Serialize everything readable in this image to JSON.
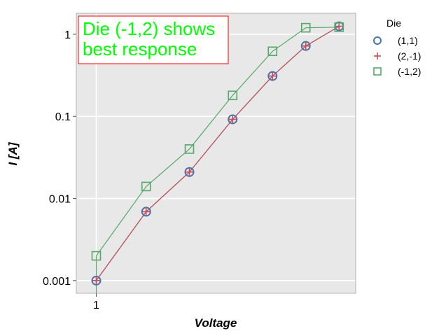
{
  "chart_data": {
    "type": "line",
    "title": "",
    "xlabel": "Voltage",
    "ylabel": "I [A]",
    "yscale": "log",
    "ylim": [
      0.0007,
      1.8
    ],
    "xlim": [
      -0.6,
      7.8
    ],
    "grid": true,
    "background": "#e8e8e8",
    "x": [
      0,
      1.5,
      2.8,
      4.1,
      5.3,
      6.3,
      7.3
    ],
    "x_ticks": [
      {
        "value": 0,
        "label": "1"
      }
    ],
    "y_ticks": [
      {
        "value": 0.001,
        "label": "0.001"
      },
      {
        "value": 0.01,
        "label": "0.01"
      },
      {
        "value": 0.1,
        "label": "0.1"
      },
      {
        "value": 1,
        "label": "1"
      }
    ],
    "legend": {
      "title": "Die",
      "placement": "outside-right"
    },
    "series": [
      {
        "name": "(1,1)",
        "marker": "circle",
        "color": "#4c72b0",
        "values": [
          0.001,
          0.0069,
          0.021,
          0.092,
          0.31,
          0.72,
          1.25
        ]
      },
      {
        "name": "(2,-1)",
        "marker": "plus",
        "color": "#c44e52",
        "values": [
          0.001,
          0.0069,
          0.021,
          0.092,
          0.31,
          0.72,
          1.25
        ]
      },
      {
        "name": "(-1,2)",
        "marker": "square",
        "color": "#55a868",
        "values": [
          0.002,
          0.014,
          0.04,
          0.18,
          0.62,
          1.2,
          1.22
        ]
      }
    ],
    "annotations": [
      {
        "lines": [
          "Die (-1,2) shows",
          "best response"
        ],
        "color": "#00ff00",
        "border_color": "#ff0000"
      }
    ]
  }
}
